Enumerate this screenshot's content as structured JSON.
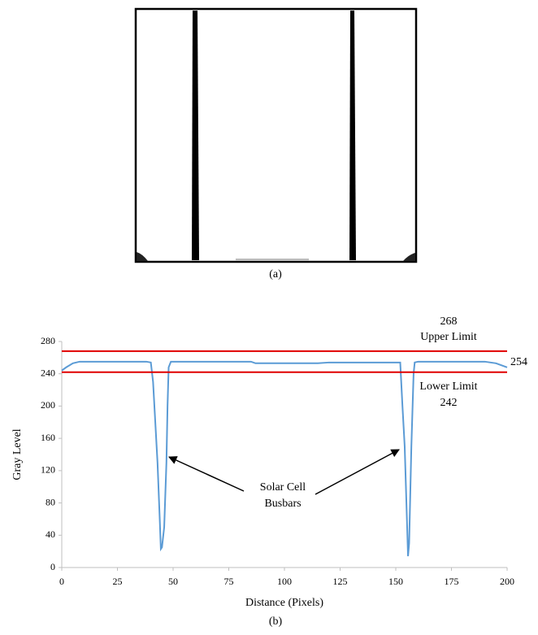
{
  "figure": {
    "captions": [
      "(a)",
      "(b)"
    ]
  },
  "chart_data": {
    "type": "line",
    "x_label": "Distance (Pixels)",
    "y_label": "Gray Level",
    "xlim": [
      0,
      200
    ],
    "xticks": [
      0,
      25,
      50,
      75,
      100,
      125,
      150,
      175,
      200
    ],
    "ylim": [
      0,
      280
    ],
    "yticks": [
      0,
      40,
      80,
      120,
      160,
      200,
      240,
      280
    ],
    "series": [
      {
        "color": "#5b9bd5",
        "x": [
          0,
          2,
          5,
          8,
          20,
          38,
          40,
          41,
          42,
          43,
          44,
          44.5,
          45,
          46,
          47,
          47.5,
          48,
          49,
          60,
          85,
          87,
          100,
          115,
          120,
          140,
          152,
          153,
          154,
          155,
          155.5,
          156,
          157,
          158,
          158.5,
          160,
          180,
          190,
          195,
          198,
          200
        ],
        "values": [
          244,
          248,
          253,
          255,
          255,
          255,
          254,
          230,
          180,
          130,
          60,
          23,
          25,
          50,
          130,
          200,
          248,
          255,
          255,
          255,
          253,
          253,
          253,
          254,
          254,
          254,
          200,
          150,
          60,
          14,
          30,
          150,
          240,
          254,
          255,
          255,
          255,
          253,
          250,
          248
        ]
      }
    ],
    "reference_lines": [
      {
        "value": 268,
        "label": "Upper Limit",
        "color": "#e00000"
      },
      {
        "value": 242,
        "label": "Lower Limit",
        "color": "#e00000"
      }
    ],
    "annotations": [
      "254",
      "Solar Cell",
      "Busbars"
    ]
  }
}
